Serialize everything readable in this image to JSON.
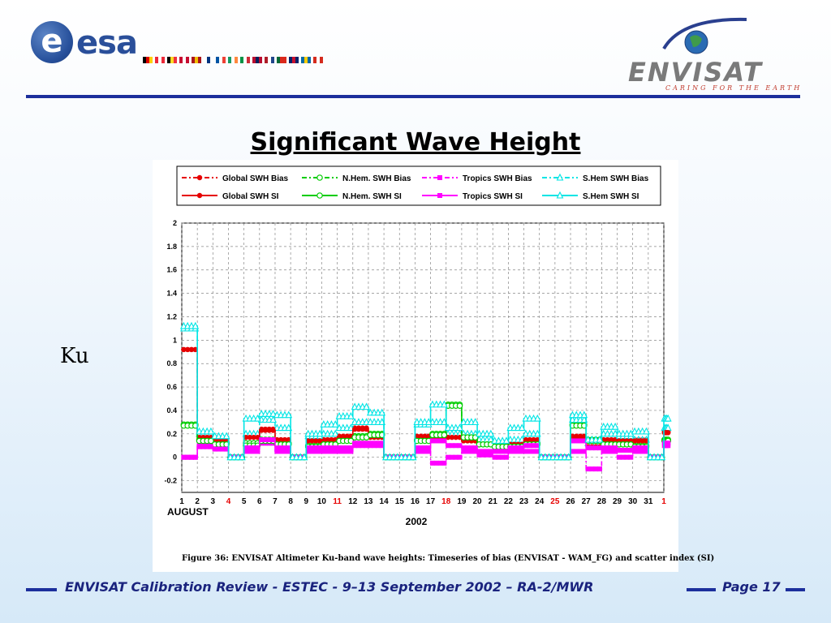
{
  "header": {
    "esa_letter": "e",
    "esa_word": "esa",
    "envisat_word": "ENVISAT",
    "envisat_tagline": "CARING FOR THE EARTH",
    "flags": [
      [
        "#000000",
        "#dd0000",
        "#ffce00"
      ],
      [
        "#ed2939",
        "#ffffff",
        "#ed2939"
      ],
      [
        "#000000",
        "#fdda24",
        "#ef3340"
      ],
      [
        "#c60c30",
        "#ffffff",
        "#c60c30"
      ],
      [
        "#aa151b",
        "#f1bf00",
        "#aa151b"
      ],
      [
        "#ffffff",
        "#003580",
        "#ffffff"
      ],
      [
        "#0055a4",
        "#ffffff",
        "#ef4135"
      ],
      [
        "#169b62",
        "#ffffff",
        "#ff883e"
      ],
      [
        "#009246",
        "#ffffff",
        "#ce2b37"
      ],
      [
        "#ba0c2f",
        "#00205b",
        "#ba0c2f"
      ],
      [
        "#ae1c28",
        "#ffffff",
        "#21468b"
      ],
      [
        "#046a38",
        "#da291c",
        "#da291c"
      ],
      [
        "#012169",
        "#c8102e",
        "#012169"
      ],
      [
        "#006aa7",
        "#fecc00",
        "#006aa7"
      ],
      [
        "#d52b1e",
        "#ffffff",
        "#d52b1e"
      ]
    ]
  },
  "slide": {
    "title": "Significant Wave Height",
    "side_label": "Ku"
  },
  "figure": {
    "caption": "Figure 36:  ENVISAT Altimeter Ku-band wave heights: Timeseries of bias (ENVISAT - WAM_FG) and scatter index (SI)"
  },
  "footer": {
    "text": "ENVISAT Calibration Review - ESTEC - 9–13 September 2002 – RA-2/MWR",
    "page_label": "Page 17"
  },
  "chart_data": {
    "type": "line",
    "xlabel_month": "AUGUST",
    "xlabel_year": "2002",
    "ylim": [
      -0.3,
      2
    ],
    "yticks": [
      "2",
      "1.8",
      "1.6",
      "1.4",
      "1.2",
      "1",
      "0.8",
      "0.6",
      "0.4",
      "0.2",
      "0",
      "-0.2"
    ],
    "ytick_values": [
      2,
      1.8,
      1.6,
      1.4,
      1.2,
      1,
      0.8,
      0.6,
      0.4,
      0.2,
      0,
      -0.2
    ],
    "categories": [
      "1",
      "2",
      "3",
      "4",
      "5",
      "6",
      "7",
      "8",
      "9",
      "10",
      "11",
      "12",
      "13",
      "14",
      "15",
      "16",
      "17",
      "18",
      "19",
      "20",
      "21",
      "22",
      "23",
      "24",
      "25",
      "26",
      "27",
      "28",
      "29",
      "30",
      "31",
      "1"
    ],
    "red_days": [
      "4",
      "11",
      "18",
      "25",
      "1"
    ],
    "grid": true,
    "legend_position": "top",
    "series": [
      {
        "name": "Global SWH Bias",
        "color": "#e60000",
        "dash": "6,3,2,3",
        "marker": "circle",
        "values": [
          0.92,
          0.18,
          0.15,
          0.0,
          0.18,
          0.24,
          0.15,
          0.0,
          0.15,
          0.15,
          0.18,
          0.25,
          0.18,
          0.0,
          0.0,
          0.18,
          0.18,
          0.18,
          0.15,
          0.12,
          0.1,
          0.12,
          0.15,
          0.0,
          0.0,
          0.18,
          0.1,
          0.15,
          0.15,
          0.15,
          0.0,
          0.22
        ]
      },
      {
        "name": "N.Hem. SWH Bias",
        "color": "#00cc00",
        "dash": "6,3,2,3",
        "marker": "circle-open",
        "values": [
          0.28,
          0.15,
          0.12,
          0.0,
          0.12,
          0.15,
          0.12,
          0.0,
          0.1,
          0.12,
          0.15,
          0.18,
          0.2,
          0.0,
          0.0,
          0.15,
          0.2,
          0.45,
          0.18,
          0.12,
          0.1,
          0.1,
          0.12,
          0.0,
          0.0,
          0.28,
          0.15,
          0.12,
          0.12,
          0.1,
          0.0,
          0.15
        ]
      },
      {
        "name": "Tropics SWH Bias",
        "color": "#ff00ff",
        "dash": "6,3,2,3",
        "marker": "square",
        "values": [
          0.0,
          0.1,
          0.08,
          0.0,
          0.05,
          0.12,
          0.05,
          0.0,
          0.05,
          0.05,
          0.05,
          0.1,
          0.1,
          0.0,
          0.0,
          0.05,
          -0.05,
          0.0,
          0.05,
          0.02,
          0.0,
          0.05,
          0.05,
          0.0,
          0.0,
          0.05,
          -0.1,
          0.05,
          0.0,
          0.05,
          0.0,
          0.1
        ]
      },
      {
        "name": "S.Hem SWH Bias",
        "color": "#00e5e5",
        "dash": "6,3,2,3",
        "marker": "triangle-open",
        "values": [
          1.1,
          0.2,
          0.15,
          0.0,
          0.2,
          0.32,
          0.25,
          0.0,
          0.18,
          0.2,
          0.25,
          0.3,
          0.3,
          0.0,
          0.0,
          0.28,
          0.3,
          0.2,
          0.2,
          0.15,
          0.12,
          0.15,
          0.2,
          0.0,
          0.0,
          0.32,
          0.12,
          0.2,
          0.18,
          0.15,
          0.0,
          0.25
        ]
      },
      {
        "name": "Global SWH SI",
        "color": "#e60000",
        "dash": "",
        "marker": "circle",
        "values": [
          0.92,
          0.17,
          0.14,
          0.0,
          0.17,
          0.23,
          0.14,
          0.0,
          0.14,
          0.14,
          0.17,
          0.24,
          0.17,
          0.0,
          0.0,
          0.17,
          0.17,
          0.17,
          0.14,
          0.11,
          0.09,
          0.11,
          0.14,
          0.0,
          0.0,
          0.17,
          0.09,
          0.14,
          0.14,
          0.14,
          0.0,
          0.21
        ]
      },
      {
        "name": "N.Hem. SWH SI",
        "color": "#00cc00",
        "dash": "",
        "marker": "circle-open",
        "values": [
          0.27,
          0.14,
          0.11,
          0.0,
          0.1,
          0.14,
          0.11,
          0.0,
          0.09,
          0.11,
          0.14,
          0.17,
          0.19,
          0.0,
          0.0,
          0.14,
          0.19,
          0.44,
          0.17,
          0.11,
          0.09,
          0.09,
          0.11,
          0.0,
          0.0,
          0.27,
          0.14,
          0.11,
          0.11,
          0.09,
          0.0,
          0.14
        ]
      },
      {
        "name": "Tropics SWH SI",
        "color": "#ff00ff",
        "dash": "",
        "marker": "square",
        "values": [
          0.0,
          0.09,
          0.07,
          0.0,
          0.08,
          0.15,
          0.08,
          0.0,
          0.08,
          0.08,
          0.08,
          0.12,
          0.12,
          0.0,
          0.0,
          0.08,
          0.14,
          0.1,
          0.08,
          0.05,
          0.05,
          0.08,
          0.1,
          0.0,
          0.0,
          0.14,
          0.08,
          0.08,
          0.06,
          0.08,
          0.0,
          0.12
        ]
      },
      {
        "name": "S.Hem SWH  SI",
        "color": "#00e5e5",
        "dash": "",
        "marker": "triangle-open",
        "values": [
          1.12,
          0.22,
          0.18,
          0.0,
          0.33,
          0.37,
          0.36,
          0.0,
          0.2,
          0.28,
          0.35,
          0.43,
          0.38,
          0.0,
          0.0,
          0.3,
          0.45,
          0.25,
          0.3,
          0.2,
          0.14,
          0.25,
          0.33,
          0.0,
          0.0,
          0.36,
          0.15,
          0.26,
          0.2,
          0.22,
          0.0,
          0.33
        ]
      }
    ]
  }
}
